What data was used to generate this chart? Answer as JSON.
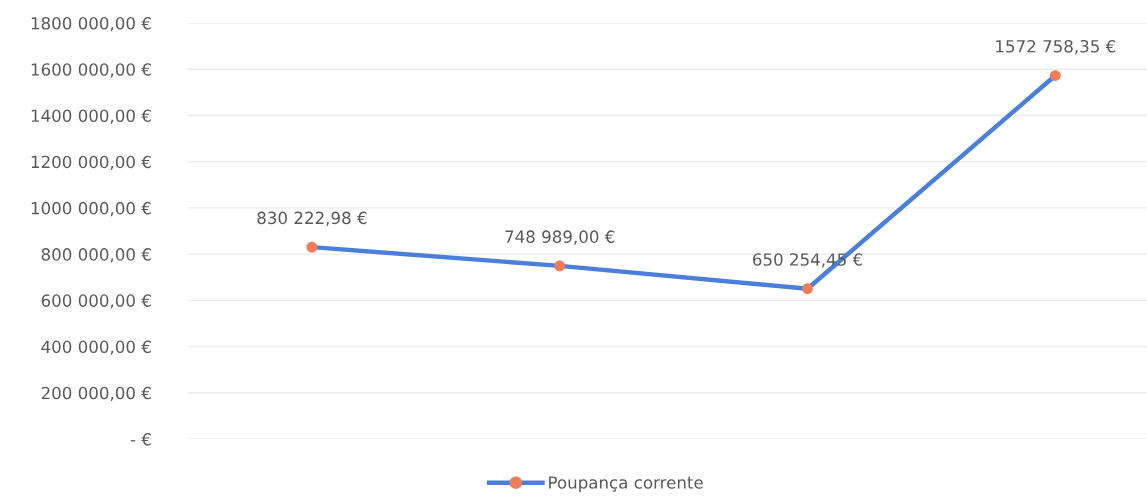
{
  "chart_data": {
    "type": "line",
    "categories": [
      null,
      null,
      null,
      null
    ],
    "series": [
      {
        "name": "Poupança corrente",
        "color": "#4a7fdc",
        "colors": [
          "#f07c5a",
          "#f07c5a",
          "#f07c5a",
          "#f07c5a"
        ],
        "values": [
          830222.98,
          748989.0,
          650254.45,
          1572758.35
        ],
        "value_labels": [
          "830 222,98 €",
          "748 989,00 €",
          "650 254,45 €",
          "1572 758,35 €"
        ]
      }
    ],
    "ylim": [
      0,
      1800000
    ],
    "yticks": [
      {
        "value": 0,
        "label": "- €"
      },
      {
        "value": 200000,
        "label": "200 000,00 €"
      },
      {
        "value": 400000,
        "label": "400 000,00 €"
      },
      {
        "value": 600000,
        "label": "600 000,00 €"
      },
      {
        "value": 800000,
        "label": "800 000,00 €"
      },
      {
        "value": 1000000,
        "label": "1000 000,00 €"
      },
      {
        "value": 1200000,
        "label": "1200 000,00 €"
      },
      {
        "value": 1400000,
        "label": "1400 000,00 €"
      },
      {
        "value": 1600000,
        "label": "1600 000,00 €"
      },
      {
        "value": 1800000,
        "label": "1800 000,00 €"
      }
    ],
    "grid": "y",
    "legend": "bottom",
    "marker": "circle",
    "line_style": "solid",
    "tick_labels": "y"
  }
}
